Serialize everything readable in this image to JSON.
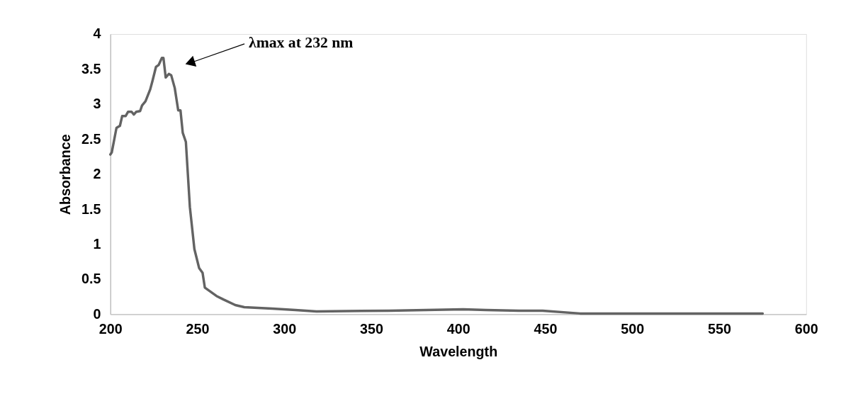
{
  "chart_data": {
    "type": "line",
    "xlabel": "Wavelength",
    "ylabel": "Absorbance",
    "x": [
      200,
      200.8,
      203.5,
      205.5,
      206.8,
      208.8,
      210.2,
      212.2,
      213.5,
      214.9,
      217.1,
      218.2,
      220.2,
      222.9,
      224.2,
      226.2,
      227.8,
      229.6,
      230.5,
      231.8,
      233.6,
      235,
      237,
      239,
      240.3,
      241.6,
      243.4,
      245.7,
      248.3,
      251,
      253,
      254.3,
      261,
      265,
      271.8,
      277,
      293,
      306.4,
      318.5,
      360,
      402.8,
      416,
      435,
      448.5,
      470,
      510,
      569,
      575
    ],
    "series": [
      {
        "color": "#636363",
        "values": [
          2.28,
          2.31,
          2.66,
          2.69,
          2.83,
          2.83,
          2.89,
          2.89,
          2.85,
          2.89,
          2.9,
          2.98,
          3.04,
          3.21,
          3.33,
          3.53,
          3.56,
          3.66,
          3.66,
          3.38,
          3.43,
          3.41,
          3.23,
          2.91,
          2.91,
          2.59,
          2.46,
          1.53,
          0.93,
          0.66,
          0.59,
          0.38,
          0.26,
          0.21,
          0.13,
          0.1,
          0.08,
          0.06,
          0.04,
          0.05,
          0.07,
          0.06,
          0.05,
          0.05,
          0.01,
          0.01,
          0.01,
          0.01
        ]
      }
    ],
    "xlim": [
      200,
      600
    ],
    "xticks": [
      200,
      250,
      300,
      350,
      400,
      450,
      500,
      550,
      600
    ],
    "ylim": [
      0,
      4
    ],
    "yticks": [
      0,
      0.5,
      1,
      1.5,
      2,
      2.5,
      3,
      3.5,
      4
    ],
    "grid": false,
    "legend": false,
    "marker": "none",
    "line_style": "solid",
    "annotations": [
      "λmax at 232 nm"
    ]
  }
}
